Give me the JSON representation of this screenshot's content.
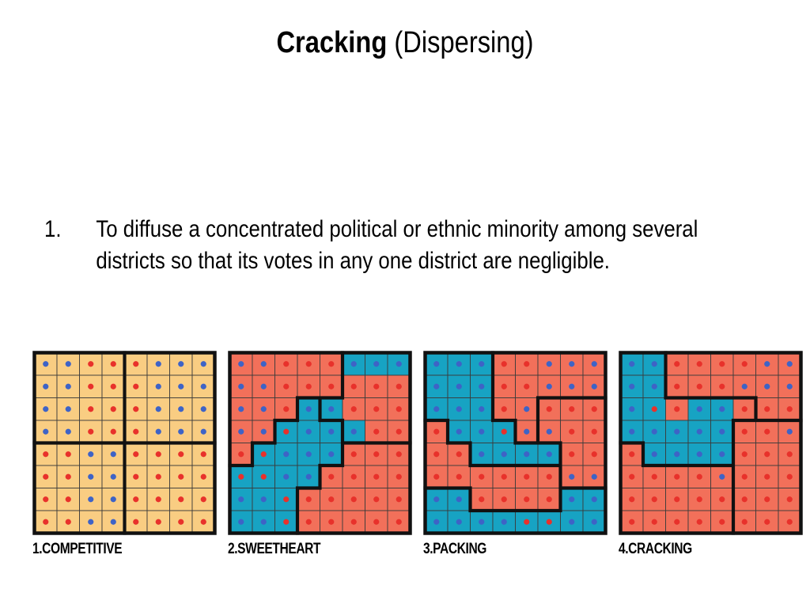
{
  "title": {
    "bold": "Cracking",
    "normal": "(Dispersing)"
  },
  "bullet": {
    "number": "1.",
    "text": "To diffuse a concentrated political or ethnic minority among several districts so that its votes in any one district are negligible."
  },
  "colors": {
    "yellow": "#f9cd82",
    "salmon": "#f2705a",
    "teal": "#17a3c3",
    "dot_blue": "#3e63c6",
    "dot_red": "#e8312b",
    "grid": "#3b3b3b",
    "border": "#111111"
  },
  "diagrams": [
    {
      "caption": "1.COMPETITIVE",
      "fills": [
        "YYYYYYYY",
        "YYYYYYYY",
        "YYYYYYYY",
        "YYYYYYYY",
        "YYYYYYYY",
        "YYYYYYYY",
        "YYYYYYYY",
        "YYYYYYYY"
      ],
      "dots": [
        "BBRRRBBB",
        "BBRRRBBB",
        "BBRRRBBB",
        "BBRRRBBB",
        "RRBBRRRR",
        "RRBBRRRR",
        "RRBBRRRR",
        "RRBBRRRR"
      ],
      "districts": [
        "AAAABBBB",
        "AAAABBBB",
        "AAAABBBB",
        "AAAABBBB",
        "CCCCDDDD",
        "CCCCDDDD",
        "CCCCDDDD",
        "CCCCDDDD"
      ]
    },
    {
      "caption": "2.SWEETHEART",
      "fills": [
        "SSSSSTTT",
        "SSSSSSSS",
        "SSSTTSSS",
        "SSTTTTSS",
        "STTTTSSS",
        "TTTTSSSS",
        "TTTSSSSS",
        "TTTSSSSS"
      ],
      "dots": [
        "BBRRRBBB",
        "BBRRRRRR",
        "BBRBBRRR",
        "BBRBBBRR",
        "RRBBBRRR",
        "RRBBRRRR",
        "BBRRRRRR",
        "BBRRRRRR"
      ],
      "districts": [
        "AAAAABBB",
        "AAAAABBB",
        "AAACBBBB",
        "AACCCBBB",
        "ACCCCDDD",
        "CCCCDDDD",
        "CCCDDDDD",
        "CCCDDDDD"
      ]
    },
    {
      "caption": "3.PACKING",
      "fills": [
        "TTTSSSSS",
        "TTTSSSSS",
        "TTTSSSSS",
        "STTTSSSS",
        "SSTTTTSS",
        "SSSSSSSS",
        "TTSSSSTT",
        "TTTTTTTT"
      ],
      "dots": [
        "BBBRRBBB",
        "BBBRRBBB",
        "BBBRBRRR",
        "RBBRBBRR",
        "RRBBBBRR",
        "RRRRRRBB",
        "BBRRRRBB",
        "BBBBRRBB"
      ],
      "districts": [
        "AAABBBBB",
        "AAABBBBB",
        "AAABBCCC",
        "DAAABCCC",
        "DDAAAACC",
        "DDDDDDCC",
        "AADDDDAA",
        "AAAAAAAA"
      ]
    },
    {
      "caption": "4.CRACKING",
      "fills": [
        "TTSSSSSS",
        "TTSSSSSS",
        "TTSTTSSS",
        "TTTTTSSS",
        "STTTTSSS",
        "SSSSSSSS",
        "SSSSSSSS",
        "SSSSSSSS"
      ],
      "dots": [
        "BBRRRRBB",
        "BBRRRBBB",
        "BRRBBRRR",
        "BBBBBRRB",
        "RBBBBRRR",
        "RRRRBRRR",
        "RRRRRRRR",
        "RRRRRRRR"
      ],
      "districts": [
        "AABBBBBB",
        "AABBBBBB",
        "AAAAAABB",
        "AAAAACCC",
        "DAAAACCC",
        "DDDDDCCC",
        "DDDDDCCC",
        "DDDDDCCC"
      ]
    }
  ]
}
